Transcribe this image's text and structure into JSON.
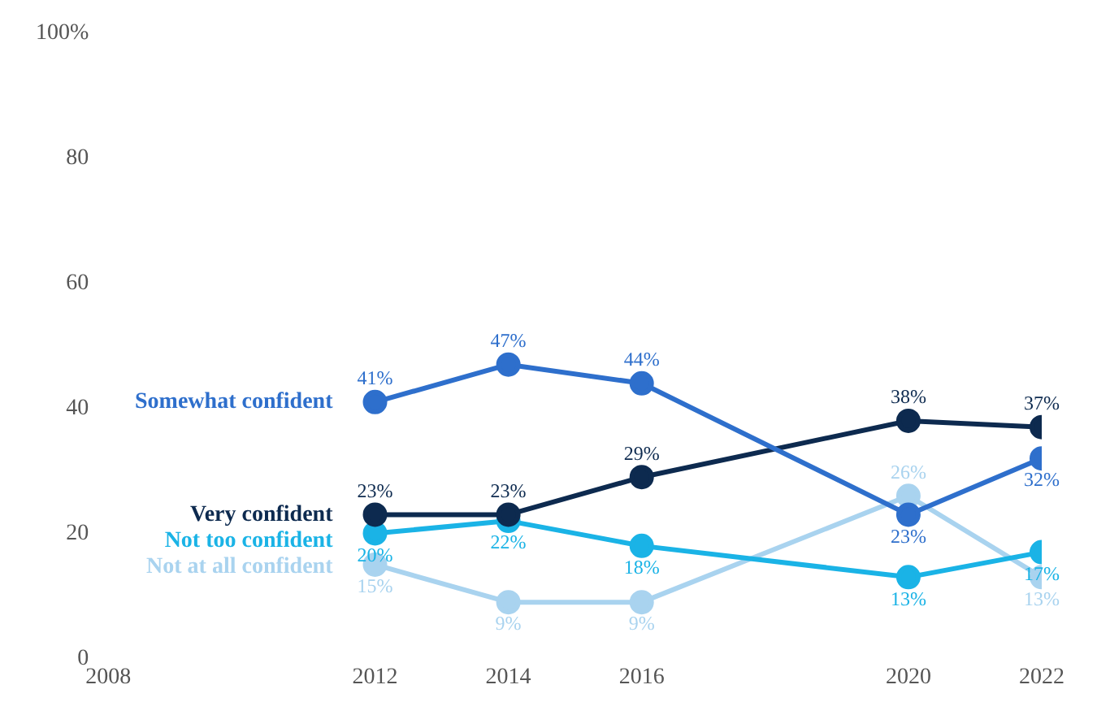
{
  "chart_data": {
    "type": "line",
    "x": [
      2012,
      2014,
      2016,
      2020,
      2022
    ],
    "xlim": [
      2008,
      2022
    ],
    "xticks": [
      2008,
      2012,
      2014,
      2016,
      2020,
      2022
    ],
    "ylim": [
      0,
      100
    ],
    "yticks": [
      0,
      20,
      40,
      60,
      80,
      {
        "value": 100,
        "label": "100%"
      }
    ],
    "marker": "circle",
    "legend": false,
    "grid": false,
    "series": [
      {
        "name": "Somewhat confident",
        "color": "#2e6fcc",
        "values": [
          41,
          47,
          44,
          23,
          32
        ],
        "value_labels": [
          "41%",
          "47%",
          "44%",
          "23%",
          "32%"
        ]
      },
      {
        "name": "Very confident",
        "color": "#0d2a4f",
        "values": [
          23,
          23,
          29,
          38,
          37
        ],
        "value_labels": [
          "23%",
          "23%",
          "29%",
          "38%",
          "37%"
        ]
      },
      {
        "name": "Not too confident",
        "color": "#1ab3e6",
        "values": [
          20,
          22,
          18,
          13,
          17
        ],
        "value_labels": [
          "20%",
          "22%",
          "18%",
          "13%",
          "17%"
        ]
      },
      {
        "name": "Not at all confident",
        "color": "#a9d3ef",
        "values": [
          15,
          9,
          9,
          26,
          13
        ],
        "value_labels": [
          "15%",
          "9%",
          "9%",
          "26%",
          "13%"
        ]
      }
    ]
  }
}
